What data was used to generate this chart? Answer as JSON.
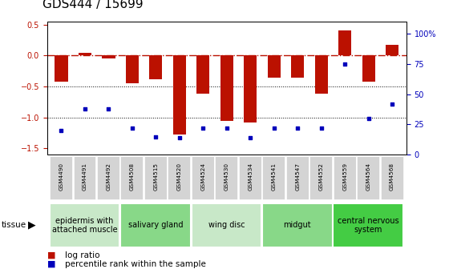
{
  "title": "GDS444 / 15699",
  "samples": [
    "GSM4490",
    "GSM4491",
    "GSM4492",
    "GSM4508",
    "GSM4515",
    "GSM4520",
    "GSM4524",
    "GSM4530",
    "GSM4534",
    "GSM4541",
    "GSM4547",
    "GSM4552",
    "GSM4559",
    "GSM4564",
    "GSM4568"
  ],
  "log_ratio": [
    -0.42,
    0.05,
    -0.05,
    -0.45,
    -0.38,
    -1.28,
    -0.62,
    -1.05,
    -1.08,
    -0.35,
    -0.35,
    -0.62,
    0.4,
    -0.42,
    0.18
  ],
  "percentile": [
    20,
    38,
    38,
    22,
    15,
    14,
    22,
    22,
    14,
    22,
    22,
    22,
    75,
    30,
    42
  ],
  "tissue_groups": [
    {
      "label": "epidermis with\nattached muscle",
      "start": 0,
      "end": 3,
      "color": "#c8e8c8"
    },
    {
      "label": "salivary gland",
      "start": 3,
      "end": 6,
      "color": "#88d888"
    },
    {
      "label": "wing disc",
      "start": 6,
      "end": 9,
      "color": "#c8e8c8"
    },
    {
      "label": "midgut",
      "start": 9,
      "end": 12,
      "color": "#88d888"
    },
    {
      "label": "central nervous\nsystem",
      "start": 12,
      "end": 15,
      "color": "#44cc44"
    }
  ],
  "bar_color": "#bb1100",
  "dot_color": "#0000bb",
  "ylim_left": [
    -1.6,
    0.55
  ],
  "ylim_right": [
    0,
    110
  ],
  "yticks_left": [
    -1.5,
    -1.0,
    -0.5,
    0.0,
    0.5
  ],
  "yticks_right": [
    0,
    25,
    50,
    75,
    100
  ],
  "title_fontsize": 11,
  "tick_fontsize": 7,
  "sample_fontsize": 5.2,
  "tissue_fontsize": 7,
  "legend_fontsize": 7.5,
  "cell_color": "#d4d4d4",
  "cell_edge_color": "#ffffff"
}
